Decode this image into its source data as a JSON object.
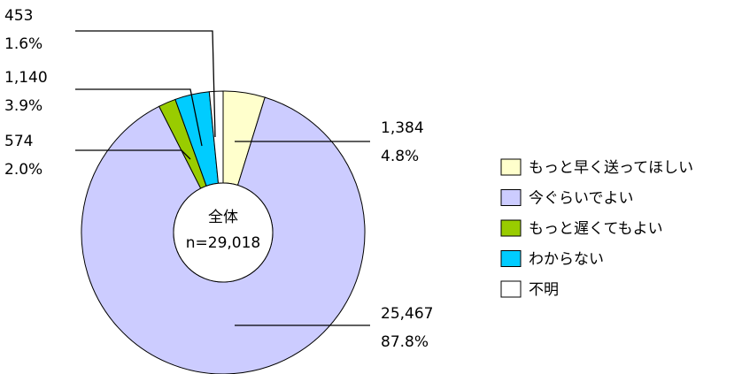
{
  "chart_data": {
    "type": "donut",
    "categories": [
      "もっと早く送ってほしい",
      "今ぐらいでよい",
      "もっと遅くてもよい",
      "わからない",
      "不明"
    ],
    "values": [
      1384,
      25467,
      574,
      1140,
      453
    ],
    "value_labels": [
      "1,384",
      "25,467",
      "574",
      "1,140",
      "453"
    ],
    "percents": [
      4.8,
      87.8,
      2.0,
      3.9,
      1.6
    ],
    "percent_labels": [
      "4.8%",
      "87.8%",
      "2.0%",
      "3.9%",
      "1.6%"
    ],
    "colors": [
      "#ffffcc",
      "#ccccff",
      "#99cc00",
      "#00ccff",
      "#ffffff"
    ],
    "center_title": "全体",
    "center_total": "n=29,018",
    "legend": "right"
  }
}
